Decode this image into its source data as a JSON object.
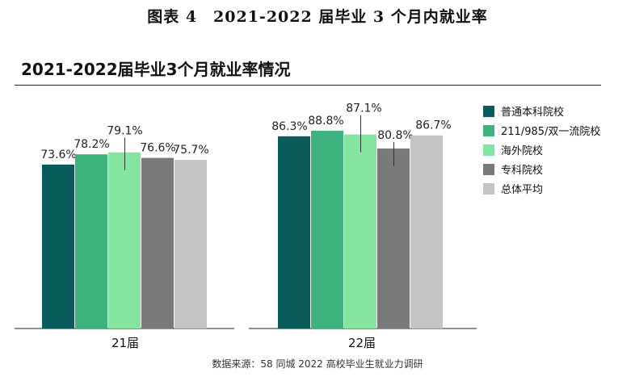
{
  "caption": "图表 4　2021-2022 届毕业 3 个月内就业率",
  "source": "数据来源：58 同城 2022 高校毕业生就业力调研",
  "chart_data": {
    "type": "bar",
    "title": "2021-2022届毕业3个月就业率情况",
    "categories": [
      "21届",
      "22届"
    ],
    "series": [
      {
        "name": "普通本科院校",
        "color": "#0a5c5c",
        "values": [
          73.6,
          86.3
        ],
        "labels": [
          "73.6%",
          "86.3%"
        ]
      },
      {
        "name": "211/985/双一流院校",
        "color": "#3db47e",
        "values": [
          78.2,
          88.8
        ],
        "labels": [
          "78.2%",
          "88.8%"
        ]
      },
      {
        "name": "海外院校",
        "color": "#84e69e",
        "values": [
          79.1,
          87.1
        ],
        "labels": [
          "79.1%",
          "87.1%"
        ]
      },
      {
        "name": "专科院校",
        "color": "#7a7a7a",
        "values": [
          76.6,
          80.8
        ],
        "labels": [
          "76.6%",
          "80.8%"
        ]
      },
      {
        "name": "总体平均",
        "color": "#c4c4c4",
        "values": [
          75.7,
          86.7
        ],
        "labels": [
          "75.7%",
          "86.7%"
        ]
      }
    ],
    "ylim": [
      0,
      104
    ],
    "legend": "right",
    "grid": false
  }
}
